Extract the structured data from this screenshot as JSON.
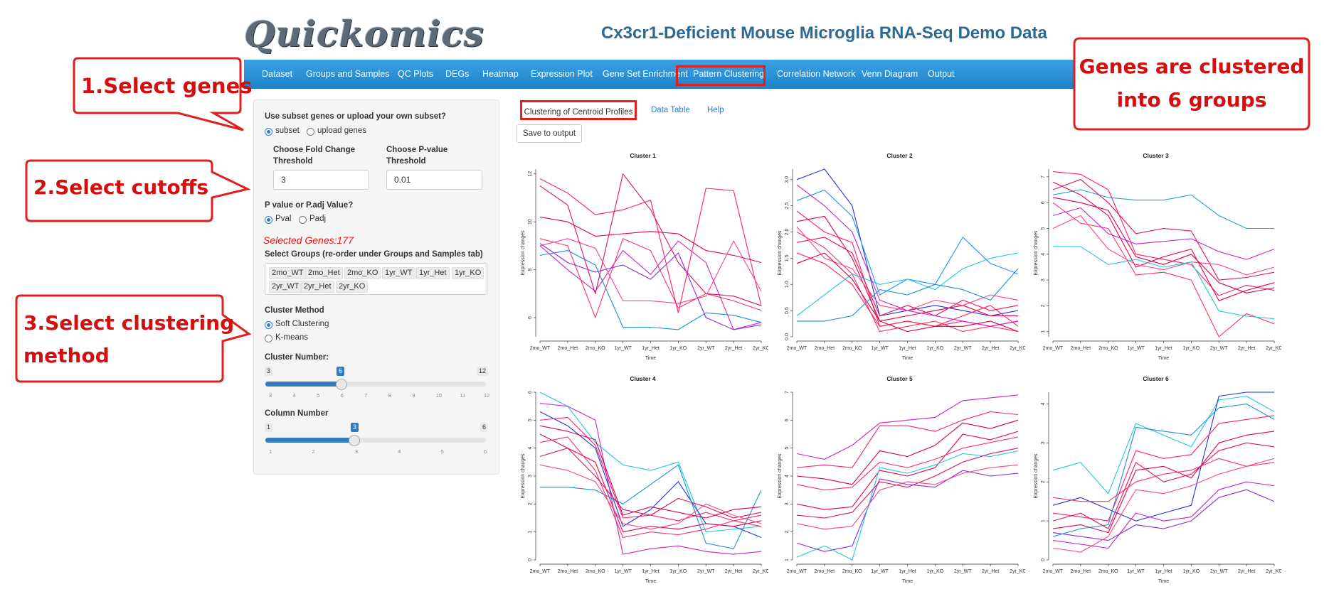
{
  "header": {
    "logo": "Quickomics",
    "title": "Cx3cr1-Deficient Mouse Microglia RNA-Seq Demo Data"
  },
  "nav": [
    "Dataset",
    "Groups and Samples",
    "QC Plots",
    "DEGs",
    "Heatmap",
    "Expression Plot",
    "Gene Set Enrichment",
    "Pattern Clustering",
    "Correlation Network",
    "Venn Diagram",
    "Output"
  ],
  "sidebar": {
    "subset_question": "Use subset genes or upload your own subset?",
    "subset_options": [
      "subset",
      "upload genes"
    ],
    "fc_label_1": "Choose Fold Change",
    "fc_label_2": "Threshold",
    "fc_value": "3",
    "pv_label_1": "Choose P-value",
    "pv_label_2": "Threshold",
    "pv_value": "0.01",
    "pval_question": "P value or P.adj Value?",
    "pval_options": [
      "Pval",
      "Padj"
    ],
    "selected_genes": "Selected Genes:177",
    "groups_label": "Select Groups (re-order under Groups and Samples tab)",
    "groups": [
      "2mo_WT",
      "2mo_Het",
      "2mo_KO",
      "1yr_WT",
      "1yr_Het",
      "1yr_KO",
      "2yr_WT",
      "2yr_Het",
      "2yr_KO"
    ],
    "method_label": "Cluster Method",
    "method_options": [
      "Soft Clustering",
      "K-means"
    ],
    "cluster_number_label": "Cluster Number:",
    "cluster_slider": {
      "min": "3",
      "max": "12",
      "value": "6",
      "ticks": [
        "3",
        "4",
        "5",
        "6",
        "7",
        "8",
        "9",
        "10",
        "11",
        "12"
      ]
    },
    "column_number_label": "Column Number",
    "column_slider": {
      "min": "1",
      "max": "6",
      "value": "3",
      "ticks": [
        "1",
        "2",
        "3",
        "4",
        "5",
        "6"
      ]
    }
  },
  "tabs": {
    "active": "Clustering of Centroid Profiles",
    "data_table": "Data Table",
    "help": "Help"
  },
  "save_button": "Save to output",
  "callouts": {
    "c1": "1.Select genes",
    "c2": "2.Select cutoffs",
    "c3_line1": "3.Select clustering",
    "c3_line2": "method",
    "c4_line1": "Genes are clustered",
    "c4_line2": "into 6 groups"
  },
  "colors": {
    "nav_blue": "#1f82c8",
    "accent_red": "#d40f0f",
    "link_blue": "#2a7bd1",
    "title_blue": "#2b6a94"
  },
  "chart_data": [
    {
      "type": "line",
      "title": "Cluster 1",
      "xlabel": "Time",
      "ylabel": "Expression changes",
      "x": [
        "2mo_WT",
        "2mo_Het",
        "2mo_KO",
        "1yr_WT",
        "1yr_Het",
        "1yr_KO",
        "2yr_WT",
        "2yr_Het",
        "2yr_KO"
      ],
      "ylim": [
        5.2,
        12.2
      ],
      "yticks": [
        "6",
        "8",
        "10",
        "12"
      ],
      "series": [
        {
          "color": "#ff1f6e",
          "values": [
            11.8,
            11.2,
            10.3,
            10.5,
            10.9,
            6.2,
            11.4,
            11.3,
            6.5
          ]
        },
        {
          "color": "#e8004a",
          "values": [
            10.2,
            10.0,
            9.4,
            9.5,
            9.6,
            9.5,
            8.8,
            8.6,
            8.3
          ]
        },
        {
          "color": "#cc22cc",
          "values": [
            9.0,
            8.0,
            7.1,
            8.8,
            7.8,
            9.2,
            8.3,
            5.5,
            5.8
          ]
        },
        {
          "color": "#1a8fdc",
          "values": [
            8.6,
            8.8,
            8.2,
            5.6,
            5.6,
            5.5,
            6.2,
            6.1,
            5.8
          ]
        },
        {
          "color": "#ff3366",
          "values": [
            9.3,
            9.0,
            6.0,
            9.3,
            8.8,
            6.4,
            7.0,
            6.7,
            6.3
          ]
        },
        {
          "color": "#e0115f",
          "values": [
            11.5,
            10.7,
            7.0,
            12.0,
            10.5,
            8.3,
            7.0,
            6.9,
            6.5
          ]
        },
        {
          "color": "#ff3fa0",
          "values": [
            9.0,
            9.3,
            8.9,
            6.7,
            6.7,
            6.6,
            6.9,
            9.2,
            7.1
          ]
        },
        {
          "color": "#8a2be2",
          "values": [
            9.1,
            8.3,
            7.9,
            8.2,
            7.6,
            8.7,
            6.0,
            5.5,
            5.7
          ]
        }
      ]
    },
    {
      "type": "line",
      "title": "Cluster 2",
      "xlabel": "Time",
      "ylabel": "Expression changes",
      "x": [
        "2mo_WT",
        "2mo_Het",
        "2mo_KO",
        "1yr_WT",
        "1yr_Het",
        "1yr_KO",
        "2yr_WT",
        "2yr_Het",
        "2yr_KO"
      ],
      "ylim": [
        0,
        3.2
      ],
      "yticks": [
        "0.0",
        "0.5",
        "1.0",
        "1.5",
        "2.0",
        "2.5",
        "3.0"
      ],
      "series": [
        {
          "color": "#2233dd",
          "values": [
            3.0,
            3.2,
            2.5,
            0.4,
            0.5,
            0.6,
            0.5,
            0.4,
            0.5
          ]
        },
        {
          "color": "#1e90ff",
          "values": [
            2.6,
            2.8,
            2.3,
            0.8,
            1.1,
            1.0,
            1.9,
            1.4,
            1.2
          ]
        },
        {
          "color": "#ff1f6e",
          "values": [
            2.4,
            2.0,
            1.8,
            0.2,
            0.3,
            0.2,
            0.3,
            0.2,
            0.3
          ]
        },
        {
          "color": "#e8004a",
          "values": [
            2.2,
            2.3,
            1.5,
            0.3,
            0.4,
            0.5,
            0.6,
            0.4,
            0.4
          ]
        },
        {
          "color": "#ff3366",
          "values": [
            2.0,
            1.7,
            1.2,
            0.1,
            0.2,
            0.3,
            0.1,
            0.2,
            0.1
          ]
        },
        {
          "color": "#e0115f",
          "values": [
            1.8,
            1.9,
            1.6,
            0.4,
            0.6,
            0.4,
            0.7,
            0.5,
            0.6
          ]
        },
        {
          "color": "#ff2255",
          "values": [
            1.6,
            1.4,
            1.0,
            0.2,
            0.3,
            0.2,
            0.4,
            0.6,
            0.2
          ]
        },
        {
          "color": "#1ec8e8",
          "values": [
            0.4,
            0.8,
            1.2,
            1.0,
            1.1,
            0.9,
            1.3,
            1.5,
            1.6
          ]
        },
        {
          "color": "#cc22cc",
          "values": [
            2.9,
            2.5,
            2.0,
            0.7,
            0.5,
            0.4,
            0.3,
            0.2,
            0.3
          ]
        },
        {
          "color": "#ff4488",
          "values": [
            2.1,
            1.5,
            1.3,
            0.6,
            0.5,
            0.7,
            0.6,
            0.8,
            0.7
          ]
        },
        {
          "color": "#d6004f",
          "values": [
            1.4,
            1.6,
            1.1,
            0.3,
            0.1,
            0.2,
            0.2,
            0.3,
            0.1
          ]
        },
        {
          "color": "#1a8fdc",
          "values": [
            0.3,
            0.3,
            0.4,
            0.9,
            0.8,
            1.0,
            0.9,
            0.7,
            1.3
          ]
        }
      ]
    },
    {
      "type": "line",
      "title": "Cluster 3",
      "xlabel": "Time",
      "ylabel": "Expression changes",
      "x": [
        "2mo_WT",
        "2mo_Het",
        "2mo_KO",
        "1yr_WT",
        "1yr_Het",
        "1yr_KO",
        "2yr_WT",
        "2yr_Het",
        "2yr_KO"
      ],
      "ylim": [
        0.8,
        7.3
      ],
      "yticks": [
        "1",
        "2",
        "3",
        "4",
        "5",
        "6",
        "7"
      ],
      "series": [
        {
          "color": "#1ea0e6",
          "values": [
            6.3,
            6.5,
            6.2,
            6.1,
            6.1,
            6.3,
            5.5,
            5.0,
            5.0
          ]
        },
        {
          "color": "#ff1f6e",
          "values": [
            7.2,
            7.1,
            6.5,
            4.0,
            3.8,
            3.6,
            2.4,
            2.8,
            2.6
          ]
        },
        {
          "color": "#e8004a",
          "values": [
            6.8,
            6.3,
            5.5,
            3.5,
            3.9,
            4.2,
            2.2,
            2.6,
            2.9
          ]
        },
        {
          "color": "#ff3366",
          "values": [
            6.0,
            5.2,
            5.0,
            3.2,
            3.3,
            3.0,
            0.8,
            1.7,
            1.3
          ]
        },
        {
          "color": "#cc22cc",
          "values": [
            5.5,
            5.8,
            4.8,
            4.4,
            4.5,
            4.6,
            4.1,
            3.8,
            4.2
          ]
        },
        {
          "color": "#e0115f",
          "values": [
            6.5,
            6.9,
            6.0,
            4.8,
            5.0,
            4.9,
            3.0,
            3.1,
            3.3
          ]
        },
        {
          "color": "#ff4488",
          "values": [
            5.0,
            5.5,
            4.2,
            3.6,
            3.4,
            3.7,
            3.6,
            3.2,
            3.5
          ]
        },
        {
          "color": "#1ec8e8",
          "values": [
            4.3,
            4.3,
            3.6,
            3.8,
            3.5,
            3.7,
            1.8,
            1.6,
            1.5
          ]
        },
        {
          "color": "#d6004f",
          "values": [
            6.2,
            6.0,
            5.7,
            3.9,
            3.6,
            4.0,
            2.9,
            2.5,
            2.7
          ]
        }
      ]
    },
    {
      "type": "line",
      "title": "Cluster 4",
      "xlabel": "Time",
      "ylabel": "Expression changes",
      "x": [
        "2mo_WT",
        "2mo_Het",
        "2mo_KO",
        "1yr_WT",
        "1yr_Het",
        "1yr_KO",
        "2yr_WT",
        "2yr_Het",
        "2yr_KO"
      ],
      "ylim": [
        0,
        6
      ],
      "yticks": [
        "0",
        "1",
        "2",
        "3",
        "4",
        "5",
        "6"
      ],
      "series": [
        {
          "color": "#1ec8e8",
          "values": [
            6.0,
            5.5,
            4.2,
            3.4,
            3.2,
            3.5,
            1.0,
            1.1,
            1.2
          ]
        },
        {
          "color": "#2233dd",
          "values": [
            5.3,
            4.8,
            4.0,
            1.2,
            1.8,
            2.8,
            1.3,
            1.2,
            0.8
          ]
        },
        {
          "color": "#ff1f6e",
          "values": [
            5.0,
            5.1,
            4.1,
            1.5,
            1.6,
            1.4,
            1.7,
            1.4,
            1.6
          ]
        },
        {
          "color": "#e8004a",
          "values": [
            4.5,
            4.0,
            3.5,
            1.0,
            1.2,
            1.1,
            1.3,
            1.2,
            1.4
          ]
        },
        {
          "color": "#ff3366",
          "values": [
            4.2,
            4.4,
            3.2,
            0.8,
            1.0,
            0.9,
            1.1,
            1.4,
            1.2
          ]
        },
        {
          "color": "#cc22cc",
          "values": [
            5.6,
            5.5,
            5.0,
            0.2,
            0.4,
            0.5,
            0.3,
            0.2,
            0.3
          ]
        },
        {
          "color": "#1a8fdc",
          "values": [
            2.6,
            2.6,
            2.5,
            2.0,
            2.7,
            3.4,
            0.6,
            0.4,
            2.5
          ]
        },
        {
          "color": "#e0115f",
          "values": [
            3.7,
            4.0,
            3.0,
            1.8,
            1.6,
            2.2,
            1.9,
            1.5,
            1.7
          ]
        },
        {
          "color": "#ff4488",
          "values": [
            3.4,
            3.2,
            2.8,
            1.3,
            1.1,
            1.3,
            2.0,
            1.6,
            1.3
          ]
        },
        {
          "color": "#d6004f",
          "values": [
            4.8,
            4.6,
            4.3,
            1.6,
            1.9,
            1.7,
            1.5,
            1.8,
            1.9
          ]
        }
      ]
    },
    {
      "type": "line",
      "title": "Cluster 5",
      "xlabel": "Time",
      "ylabel": "Expression changes",
      "x": [
        "2mo_WT",
        "2mo_Het",
        "2mo_KO",
        "1yr_WT",
        "1yr_Het",
        "1yr_KO",
        "2yr_WT",
        "2yr_Het",
        "2yr_KO"
      ],
      "ylim": [
        1,
        7
      ],
      "yticks": [
        "1",
        "2",
        "3",
        "4",
        "5",
        "6",
        "7"
      ],
      "series": [
        {
          "color": "#cc22cc",
          "values": [
            4.8,
            4.6,
            5.1,
            5.9,
            6.0,
            6.1,
            6.7,
            6.8,
            6.9
          ]
        },
        {
          "color": "#ff1f6e",
          "values": [
            4.3,
            4.4,
            4.3,
            5.8,
            5.8,
            5.6,
            6.0,
            6.3,
            6.2
          ]
        },
        {
          "color": "#e8004a",
          "values": [
            3.0,
            2.8,
            2.9,
            4.2,
            4.0,
            4.3,
            5.5,
            5.3,
            5.6
          ]
        },
        {
          "color": "#ff3366",
          "values": [
            3.7,
            3.5,
            3.6,
            4.5,
            4.3,
            4.6,
            5.0,
            5.2,
            5.4
          ]
        },
        {
          "color": "#8a2be2",
          "values": [
            1.6,
            1.3,
            1.5,
            3.9,
            3.7,
            3.6,
            4.2,
            4.0,
            4.1
          ]
        },
        {
          "color": "#1ec8e8",
          "values": [
            1.1,
            1.5,
            1.0,
            4.3,
            4.1,
            4.4,
            4.8,
            4.7,
            4.9
          ]
        },
        {
          "color": "#e0115f",
          "values": [
            2.6,
            2.5,
            2.7,
            3.8,
            3.6,
            4.0,
            4.5,
            4.8,
            5.0
          ]
        },
        {
          "color": "#ff4488",
          "values": [
            2.3,
            2.1,
            2.2,
            3.5,
            3.8,
            3.7,
            4.1,
            4.3,
            4.4
          ]
        },
        {
          "color": "#d6004f",
          "values": [
            4.0,
            3.9,
            3.7,
            4.9,
            4.7,
            5.1,
            5.9,
            5.7,
            6.0
          ]
        }
      ]
    },
    {
      "type": "line",
      "title": "Cluster 6",
      "xlabel": "Time",
      "ylabel": "Expression changes",
      "x": [
        "2mo_WT",
        "2mo_Het",
        "2mo_KO",
        "1yr_WT",
        "1yr_Het",
        "1yr_KO",
        "2yr_WT",
        "2yr_Het",
        "2yr_KO"
      ],
      "ylim": [
        0,
        4.3
      ],
      "yticks": [
        "0",
        "1",
        "2",
        "3",
        "4"
      ],
      "series": [
        {
          "color": "#1ec8e8",
          "values": [
            2.3,
            2.5,
            1.7,
            3.5,
            3.2,
            2.9,
            4.1,
            4.2,
            3.8
          ]
        },
        {
          "color": "#2233dd",
          "values": [
            1.4,
            1.6,
            1.3,
            1.0,
            1.2,
            1.4,
            4.2,
            4.3,
            4.3
          ]
        },
        {
          "color": "#ff1f6e",
          "values": [
            1.2,
            1.1,
            1.0,
            2.8,
            2.6,
            2.7,
            3.5,
            3.6,
            3.7
          ]
        },
        {
          "color": "#e8004a",
          "values": [
            0.8,
            0.9,
            0.7,
            2.3,
            2.4,
            2.1,
            3.0,
            3.2,
            3.3
          ]
        },
        {
          "color": "#ff3366",
          "values": [
            1.6,
            1.5,
            1.5,
            2.0,
            2.2,
            2.3,
            2.6,
            2.4,
            2.5
          ]
        },
        {
          "color": "#cc22cc",
          "values": [
            0.5,
            0.4,
            0.3,
            1.2,
            1.0,
            1.1,
            1.8,
            2.0,
            1.9
          ]
        },
        {
          "color": "#8a2be2",
          "values": [
            0.7,
            0.6,
            0.5,
            0.9,
            0.8,
            1.0,
            1.6,
            1.8,
            1.5
          ]
        },
        {
          "color": "#e0115f",
          "values": [
            1.0,
            1.2,
            0.8,
            2.5,
            2.0,
            2.2,
            2.8,
            3.0,
            2.9
          ]
        },
        {
          "color": "#ff4488",
          "values": [
            0.3,
            0.2,
            0.6,
            1.8,
            1.7,
            1.9,
            2.2,
            2.4,
            2.6
          ]
        },
        {
          "color": "#1a8fdc",
          "values": [
            0.6,
            0.8,
            0.9,
            3.4,
            3.3,
            3.2,
            3.9,
            4.0,
            3.6
          ]
        }
      ]
    }
  ]
}
